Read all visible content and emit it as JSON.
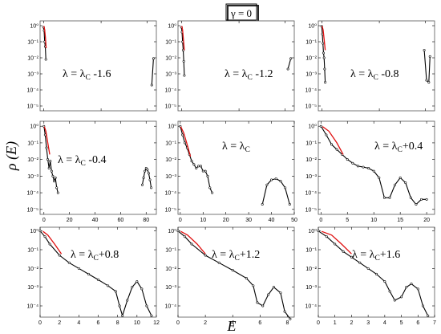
{
  "figure": {
    "header_label": "γ = 0",
    "ylabel": "ρ (E)",
    "xlabel": "E",
    "colors": {
      "main": "#000000",
      "fit": "#e01010",
      "frame": "#555555"
    }
  },
  "chart_data": [
    {
      "type": "line",
      "label_main": "λ = λ",
      "label_sub": "C",
      "label_suffix": " -1.6",
      "xlim": [
        -3,
        98
      ],
      "xticks": [
        0,
        50,
        90
      ],
      "xtick_labels": [
        "",
        "",
        ""
      ],
      "ylim_log10": [
        -5.3,
        0.3
      ],
      "yticks_log10": [
        0,
        -1,
        -2,
        -3,
        -4,
        -5
      ],
      "ytick_labels": [
        "10⁰",
        "10⁻¹",
        "10⁻²",
        "10⁻³",
        "10⁻⁴",
        "10⁻⁵"
      ],
      "series": [
        {
          "x": [
            0,
            0.5,
            1,
            1.5,
            2
          ],
          "y": [
            0.8,
            0.5,
            0.1,
            0.05,
            0.008
          ]
        },
        {
          "x": [
            94,
            95.5
          ],
          "y": [
            0.0002,
            0.009
          ]
        }
      ],
      "fit": {
        "x": [
          0.3,
          0.9,
          1.6,
          2.3
        ],
        "y": [
          0.95,
          0.6,
          0.2,
          0.04
        ]
      }
    },
    {
      "type": "line",
      "label_main": "λ = λ",
      "label_sub": "C",
      "label_suffix": " -1.2",
      "xlim": [
        -3,
        98
      ],
      "xticks": [
        0,
        50,
        90
      ],
      "xtick_labels": [
        "",
        "",
        ""
      ],
      "ylim_log10": [
        -5.3,
        0.3
      ],
      "yticks_log10": [
        0,
        -1,
        -2,
        -3,
        -4,
        -5
      ],
      "ytick_labels": [
        "10⁰",
        "10⁻¹",
        "10⁻²",
        "10⁻³",
        "10⁻⁴",
        "10⁻⁵"
      ],
      "series": [
        {
          "x": [
            0,
            0.5,
            1,
            1.5,
            2,
            2.5
          ],
          "y": [
            0.8,
            0.4,
            0.1,
            0.03,
            0.006,
            0.0008
          ]
        },
        {
          "x": [
            92.5,
            95
          ],
          "y": [
            0.002,
            0.009
          ]
        }
      ],
      "fit": {
        "x": [
          0.3,
          1,
          1.7,
          2.5
        ],
        "y": [
          0.95,
          0.55,
          0.15,
          0.03
        ]
      }
    },
    {
      "type": "line",
      "label_main": "λ = λ",
      "label_sub": "C",
      "label_suffix": " -0.8",
      "xlim": [
        -3,
        98
      ],
      "xticks": [
        0,
        50,
        90
      ],
      "xtick_labels": [
        "",
        "",
        ""
      ],
      "ylim_log10": [
        -5.3,
        0.3
      ],
      "yticks_log10": [
        0,
        -1,
        -2,
        -3,
        -4,
        -5
      ],
      "ytick_labels": [
        "10⁰",
        "10⁻¹",
        "10⁻²",
        "10⁻³",
        "10⁻⁴",
        "10⁻⁵"
      ],
      "series": [
        {
          "x": [
            0,
            0.5,
            1,
            1.5,
            2,
            2.5,
            3
          ],
          "y": [
            0.9,
            0.3,
            0.08,
            0.02,
            0.01,
            0.002,
            0.0003
          ]
        },
        {
          "x": [
            89,
            91,
            93,
            94
          ],
          "y": [
            0.03,
            0.0004,
            0.0003,
            0.012
          ]
        }
      ],
      "fit": {
        "x": [
          0.3,
          1.2,
          2,
          3
        ],
        "y": [
          0.95,
          0.55,
          0.15,
          0.03
        ]
      }
    },
    {
      "type": "line",
      "label_main": "λ = λ",
      "label_sub": "C",
      "label_suffix": " -0.4",
      "xlim": [
        -3,
        88
      ],
      "xticks": [
        0,
        20,
        40,
        60,
        80
      ],
      "xtick_labels": [
        "0",
        "20",
        "40",
        "60",
        "80"
      ],
      "ylim_log10": [
        -5.3,
        0.3
      ],
      "yticks_log10": [
        0,
        -1,
        -2,
        -3,
        -4,
        -5
      ],
      "ytick_labels": [
        "10⁰",
        "10⁻¹",
        "10⁻²",
        "10⁻³",
        "10⁻⁴",
        "10⁻⁵"
      ],
      "series": [
        {
          "x": [
            0,
            1,
            2,
            3,
            4,
            5,
            6,
            7,
            8,
            9,
            10,
            11
          ],
          "y": [
            1,
            0.3,
            0.05,
            0.01,
            0.003,
            0.008,
            0.002,
            0.001,
            0.0005,
            0.0008,
            0.0002,
            0.0001
          ]
        },
        {
          "x": [
            77,
            78,
            79,
            80,
            81,
            82,
            83,
            84
          ],
          "y": [
            0.0003,
            0.0008,
            0.002,
            0.003,
            0.0025,
            0.0015,
            0.0006,
            0.0002
          ]
        }
      ],
      "fit": {
        "x": [
          0.3,
          1.5,
          3,
          4.5
        ],
        "y": [
          0.95,
          0.5,
          0.1,
          0.02
        ]
      }
    },
    {
      "type": "line",
      "label_main": "λ = λ",
      "label_sub": "C",
      "label_suffix": "",
      "xlim": [
        -1,
        50
      ],
      "xticks": [
        0,
        10,
        20,
        30,
        40,
        50
      ],
      "xtick_labels": [
        "0",
        "10",
        "20",
        "30",
        "40",
        "50"
      ],
      "ylim_log10": [
        -5.3,
        0.3
      ],
      "yticks_log10": [
        0,
        -1,
        -2,
        -3,
        -4,
        -5
      ],
      "ytick_labels": [
        "10⁰",
        "10⁻¹",
        "10⁻²",
        "10⁻³",
        "10⁻⁴",
        "10⁻⁵"
      ],
      "series": [
        {
          "x": [
            0,
            1,
            2,
            3,
            4,
            5,
            6,
            7,
            8,
            9,
            10,
            11,
            12,
            13,
            14
          ],
          "y": [
            1,
            0.3,
            0.1,
            0.05,
            0.02,
            0.008,
            0.005,
            0.003,
            0.004,
            0.004,
            0.002,
            0.002,
            0.001,
            0.0002,
            0.0001
          ]
        },
        {
          "x": [
            36,
            38,
            40,
            42,
            44,
            46,
            48
          ],
          "y": [
            2e-05,
            0.0003,
            0.0006,
            0.0007,
            0.0005,
            0.0002,
            2e-05
          ]
        }
      ],
      "fit": {
        "x": [
          0.2,
          1.5,
          3,
          4.5
        ],
        "y": [
          0.95,
          0.4,
          0.08,
          0.015
        ]
      }
    },
    {
      "type": "line",
      "label_main": "λ = λ",
      "label_sub": "C",
      "label_suffix": "+0.4",
      "xlim": [
        -0.5,
        21.5
      ],
      "xticks": [
        0,
        5,
        10,
        15,
        20
      ],
      "xtick_labels": [
        "0",
        "5",
        "10",
        "15",
        "20"
      ],
      "ylim_log10": [
        -5.3,
        0.3
      ],
      "yticks_log10": [
        0,
        -1,
        -2,
        -3,
        -4,
        -5
      ],
      "ytick_labels": [
        "10⁰",
        "10⁻¹",
        "10⁻²",
        "10⁻³",
        "10⁻⁴",
        "10⁻⁵"
      ],
      "series": [
        {
          "x": [
            0,
            1,
            2,
            3,
            4,
            5,
            6,
            7,
            8,
            9,
            10,
            11,
            12,
            13,
            14,
            15,
            16,
            17,
            18,
            19,
            20
          ],
          "y": [
            1,
            0.3,
            0.08,
            0.04,
            0.02,
            0.01,
            0.006,
            0.004,
            0.0035,
            0.003,
            0.002,
            0.0008,
            5e-05,
            5e-05,
            0.0003,
            0.0008,
            0.0004,
            5e-05,
            2e-05,
            4e-05,
            4e-05
          ]
        }
      ],
      "fit": {
        "x": [
          0.3,
          1.5,
          3,
          4.2
        ],
        "y": [
          0.95,
          0.5,
          0.1,
          0.02
        ]
      }
    },
    {
      "type": "line",
      "label_main": "λ = λ",
      "label_sub": "C",
      "label_suffix": "+0.8",
      "xlim": [
        0,
        12
      ],
      "xticks": [
        0,
        2,
        4,
        6,
        8,
        10,
        12
      ],
      "xtick_labels": [
        "0",
        "2",
        "4",
        "6",
        "8",
        "10",
        "12"
      ],
      "ylim_log10": [
        -4.6,
        0.2
      ],
      "yticks_log10": [
        0,
        -1,
        -2,
        -3,
        -4
      ],
      "ytick_labels": [
        "10⁰",
        "10⁻¹",
        "10⁻²",
        "10⁻³",
        "10⁻⁴"
      ],
      "series": [
        {
          "x": [
            0,
            0.5,
            1,
            2,
            3,
            4,
            5,
            6,
            7,
            7.8,
            8.2,
            8.5,
            9,
            9.5,
            10,
            10.5,
            11,
            11.5
          ],
          "y": [
            1,
            0.5,
            0.2,
            0.05,
            0.02,
            0.01,
            0.005,
            0.0025,
            0.0012,
            0.0006,
            0.0001,
            3e-05,
            0.0002,
            0.001,
            0.002,
            0.0008,
            0.0001,
            3e-05
          ]
        }
      ],
      "fit": {
        "x": [
          0.3,
          0.8,
          1.5,
          2.2
        ],
        "y": [
          0.95,
          0.6,
          0.2,
          0.06
        ]
      }
    },
    {
      "type": "line",
      "label_main": "λ = λ",
      "label_sub": "C",
      "label_suffix": "+1.2",
      "xlim": [
        0,
        8.5
      ],
      "xticks": [
        0,
        2,
        4,
        6,
        8
      ],
      "xtick_labels": [
        "0",
        "2",
        "4",
        "6",
        "8"
      ],
      "ylim_log10": [
        -4.6,
        0.2
      ],
      "yticks_log10": [
        0,
        -1,
        -2,
        -3,
        -4
      ],
      "ytick_labels": [
        "10⁰",
        "10⁻¹",
        "10⁻²",
        "10⁻³",
        "10⁻⁴"
      ],
      "series": [
        {
          "x": [
            0,
            0.5,
            1,
            2,
            3,
            4,
            5,
            5.5,
            5.8,
            6.2,
            6.6,
            7,
            7.5,
            7.8,
            8.2
          ],
          "y": [
            1,
            0.5,
            0.2,
            0.05,
            0.02,
            0.008,
            0.003,
            0.0012,
            0.00015,
            0.0001,
            0.0004,
            0.001,
            0.0005,
            5e-05,
            2e-05
          ]
        }
      ],
      "fit": {
        "x": [
          0.2,
          0.7,
          1.4,
          2.0
        ],
        "y": [
          0.95,
          0.6,
          0.2,
          0.06
        ]
      }
    },
    {
      "type": "line",
      "label_main": "λ = λ",
      "label_sub": "C",
      "label_suffix": "+1.6",
      "xlim": [
        0,
        7
      ],
      "xticks": [
        0,
        1,
        2,
        3,
        4,
        5,
        6,
        7
      ],
      "xtick_labels": [
        "0",
        "1",
        "2",
        "3",
        "4",
        "5",
        "6",
        "7"
      ],
      "ylim_log10": [
        -4.6,
        0.2
      ],
      "yticks_log10": [
        0,
        -1,
        -2,
        -3,
        -4
      ],
      "ytick_labels": [
        "10⁰",
        "10⁻¹",
        "10⁻²",
        "10⁻³",
        "10⁻⁴"
      ],
      "series": [
        {
          "x": [
            0,
            0.5,
            1,
            1.5,
            2,
            2.5,
            3,
            3.5,
            4,
            4.3,
            4.6,
            5,
            5.3,
            5.6,
            6,
            6.3,
            6.6
          ],
          "y": [
            1,
            0.5,
            0.2,
            0.08,
            0.04,
            0.02,
            0.01,
            0.005,
            0.002,
            0.0006,
            0.0002,
            0.0003,
            0.001,
            0.0015,
            0.0008,
            0.0001,
            3e-05
          ]
        }
      ],
      "fit": {
        "x": [
          0.2,
          0.8,
          1.4,
          2.0
        ],
        "y": [
          0.95,
          0.6,
          0.2,
          0.06
        ]
      }
    }
  ]
}
